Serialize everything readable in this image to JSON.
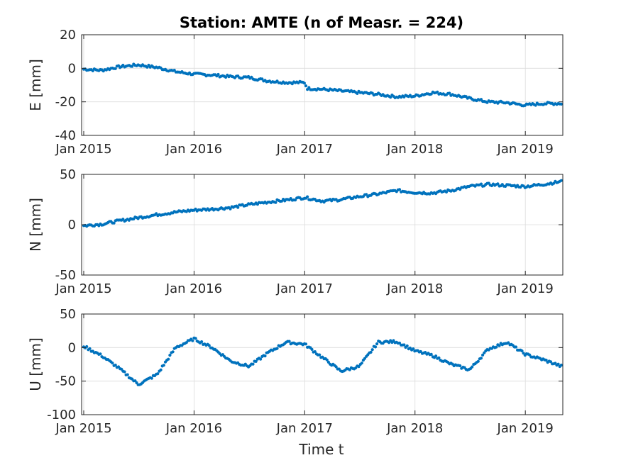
{
  "chart_data": {
    "type": "scatter",
    "title": "Station: AMTE (n of Measr. = 224)",
    "xlabel": "Time t",
    "x_ticks": [
      "Jan 2015",
      "Jan 2016",
      "Jan 2017",
      "Jan 2018",
      "Jan 2019"
    ],
    "xlim": [
      "2014-12-25",
      "2019-05-05"
    ],
    "marker_color": "#0072BD",
    "grid": true,
    "panels": [
      {
        "ylabel": "E [mm]",
        "ylim": [
          -40,
          20
        ],
        "yticks": [
          "20",
          "0",
          "-20",
          "-40"
        ],
        "x": [
          "2015-01-01",
          "2015-03-01",
          "2015-05-01",
          "2015-07-01",
          "2015-09-01",
          "2015-11-01",
          "2016-01-01",
          "2016-03-01",
          "2016-05-01",
          "2016-07-01",
          "2016-09-01",
          "2016-11-01",
          "2016-12-31",
          "2017-01-10",
          "2017-03-01",
          "2017-05-01",
          "2017-07-01",
          "2017-09-01",
          "2017-11-01",
          "2018-01-01",
          "2018-03-01",
          "2018-05-01",
          "2018-07-01",
          "2018-09-01",
          "2018-11-01",
          "2019-01-01",
          "2019-03-01",
          "2019-05-01"
        ],
        "y": [
          -0.5,
          -1.2,
          1.0,
          2.0,
          0.5,
          -2.0,
          -3.5,
          -4.0,
          -5.0,
          -5.5,
          -7.5,
          -8.5,
          -8.5,
          -12.0,
          -12.5,
          -13.5,
          -14.5,
          -15.5,
          -17.0,
          -16.5,
          -14.5,
          -15.5,
          -18.0,
          -20.0,
          -20.5,
          -22.0,
          -21.0,
          -21.0
        ]
      },
      {
        "ylabel": "N [mm]",
        "ylim": [
          -50,
          50
        ],
        "yticks": [
          "50",
          "0",
          "-50"
        ],
        "x": [
          "2015-01-01",
          "2015-03-01",
          "2015-05-01",
          "2015-07-01",
          "2015-09-01",
          "2015-11-01",
          "2016-01-01",
          "2016-03-01",
          "2016-05-01",
          "2016-07-01",
          "2016-09-01",
          "2016-11-01",
          "2017-01-01",
          "2017-03-01",
          "2017-05-01",
          "2017-07-01",
          "2017-09-01",
          "2017-11-01",
          "2018-01-01",
          "2018-03-01",
          "2018-05-01",
          "2018-07-01",
          "2018-09-01",
          "2018-11-01",
          "2019-01-01",
          "2019-03-01",
          "2019-05-01"
        ],
        "y": [
          -1.0,
          0.5,
          4.0,
          7.0,
          10.0,
          12.5,
          14.5,
          15.5,
          17.0,
          20.0,
          22.5,
          24.5,
          27.0,
          23.5,
          25.0,
          28.0,
          30.5,
          34.0,
          32.0,
          31.5,
          34.0,
          38.0,
          40.0,
          39.0,
          38.0,
          40.0,
          43.0
        ]
      },
      {
        "ylabel": "U [mm]",
        "ylim": [
          -100,
          50
        ],
        "yticks": [
          "50",
          "0",
          "-50",
          "-100"
        ],
        "x": [
          "2015-01-01",
          "2015-03-01",
          "2015-05-01",
          "2015-07-01",
          "2015-09-01",
          "2015-11-01",
          "2016-01-01",
          "2016-03-01",
          "2016-05-01",
          "2016-07-01",
          "2016-09-01",
          "2016-11-01",
          "2017-01-01",
          "2017-03-01",
          "2017-05-01",
          "2017-07-01",
          "2017-09-01",
          "2017-11-01",
          "2018-01-01",
          "2018-03-01",
          "2018-05-01",
          "2018-07-01",
          "2018-09-01",
          "2018-11-01",
          "2019-01-01",
          "2019-03-01",
          "2019-05-01"
        ],
        "y": [
          2,
          -12,
          -32,
          -55,
          -40,
          0,
          13,
          0,
          -20,
          -28,
          -8,
          8,
          5,
          -15,
          -35,
          -28,
          8,
          9,
          -5,
          -12,
          -25,
          -33,
          -2,
          8,
          -10,
          -18,
          -28
        ]
      }
    ]
  }
}
